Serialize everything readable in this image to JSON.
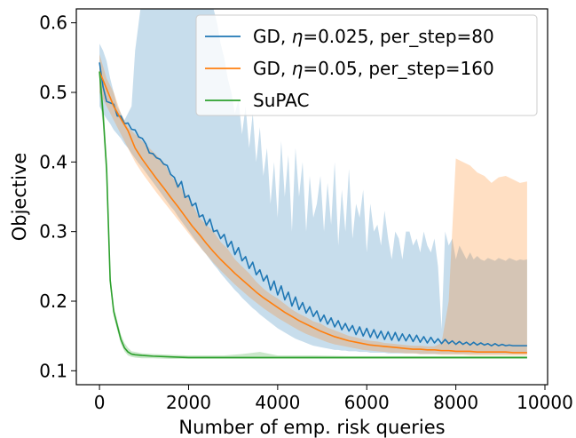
{
  "chart_data": {
    "type": "line",
    "xlabel": "Number of emp. risk queries",
    "ylabel": "Objective",
    "xlim": [
      -520,
      10060
    ],
    "ylim": [
      0.08,
      0.62
    ],
    "x_ticks": [
      0,
      2000,
      4000,
      6000,
      8000,
      10000
    ],
    "y_ticks": [
      0.1,
      0.2,
      0.3,
      0.4,
      0.5,
      0.6
    ],
    "x_tick_labels": [
      "0",
      "2000",
      "4000",
      "6000",
      "8000",
      "10000"
    ],
    "y_tick_labels": [
      "0.1",
      "0.2",
      "0.3",
      "0.4",
      "0.5",
      "0.6"
    ],
    "grid": false,
    "legend_position": "top-right",
    "series": [
      {
        "name": "GD, η=0.025, per_step=80",
        "legend_parts": [
          "GD, ",
          "η",
          "=0.025, per_step=80"
        ],
        "color": "#1f77b4",
        "band_color": "#1f77b4",
        "x": [
          0,
          80,
          160,
          240,
          320,
          400,
          480,
          560,
          640,
          720,
          800,
          880,
          960,
          1040,
          1120,
          1200,
          1280,
          1360,
          1440,
          1520,
          1600,
          1680,
          1760,
          1840,
          1920,
          2000,
          2080,
          2160,
          2240,
          2320,
          2400,
          2480,
          2560,
          2640,
          2720,
          2800,
          2880,
          2960,
          3040,
          3120,
          3200,
          3280,
          3360,
          3440,
          3520,
          3600,
          3680,
          3760,
          3840,
          3920,
          4000,
          4080,
          4160,
          4240,
          4320,
          4400,
          4480,
          4560,
          4640,
          4720,
          4800,
          4880,
          4960,
          5040,
          5120,
          5200,
          5280,
          5360,
          5440,
          5520,
          5600,
          5680,
          5760,
          5840,
          5920,
          6000,
          6080,
          6160,
          6240,
          6320,
          6400,
          6480,
          6560,
          6640,
          6720,
          6800,
          6880,
          6960,
          7040,
          7120,
          7200,
          7280,
          7360,
          7440,
          7520,
          7600,
          7680,
          7760,
          7840,
          7920,
          8000,
          8080,
          8160,
          8240,
          8320,
          8400,
          8480,
          8560,
          8640,
          8720,
          8800,
          8880,
          8960,
          9040,
          9120,
          9200,
          9280,
          9360,
          9440,
          9520,
          9600
        ],
        "y": [
          0.543,
          0.508,
          0.487,
          0.485,
          0.483,
          0.466,
          0.466,
          0.455,
          0.456,
          0.447,
          0.446,
          0.436,
          0.434,
          0.426,
          0.413,
          0.412,
          0.406,
          0.404,
          0.397,
          0.395,
          0.382,
          0.378,
          0.364,
          0.372,
          0.349,
          0.352,
          0.337,
          0.341,
          0.321,
          0.324,
          0.309,
          0.318,
          0.3,
          0.302,
          0.29,
          0.296,
          0.278,
          0.286,
          0.267,
          0.277,
          0.258,
          0.264,
          0.247,
          0.256,
          0.238,
          0.245,
          0.229,
          0.237,
          0.216,
          0.229,
          0.209,
          0.222,
          0.202,
          0.213,
          0.193,
          0.206,
          0.188,
          0.198,
          0.183,
          0.192,
          0.178,
          0.186,
          0.171,
          0.18,
          0.167,
          0.176,
          0.163,
          0.172,
          0.159,
          0.168,
          0.157,
          0.165,
          0.152,
          0.163,
          0.15,
          0.161,
          0.148,
          0.159,
          0.147,
          0.157,
          0.145,
          0.156,
          0.144,
          0.155,
          0.143,
          0.153,
          0.143,
          0.152,
          0.142,
          0.151,
          0.141,
          0.149,
          0.14,
          0.148,
          0.14,
          0.146,
          0.139,
          0.145,
          0.139,
          0.143,
          0.138,
          0.142,
          0.138,
          0.141,
          0.137,
          0.141,
          0.137,
          0.14,
          0.137,
          0.139,
          0.136,
          0.139,
          0.136,
          0.138,
          0.136,
          0.137,
          0.136,
          0.136,
          0.136,
          0.136,
          0.136
        ],
        "lower": [
          0.48,
          0.47,
          0.462,
          0.455,
          0.446,
          0.44,
          0.434,
          0.426,
          0.42,
          0.412,
          0.405,
          0.398,
          0.392,
          0.385,
          0.378,
          0.371,
          0.364,
          0.357,
          0.35,
          0.343,
          0.336,
          0.33,
          0.322,
          0.315,
          0.308,
          0.301,
          0.294,
          0.287,
          0.28,
          0.273,
          0.267,
          0.26,
          0.253,
          0.247,
          0.24,
          0.234,
          0.228,
          0.222,
          0.216,
          0.211,
          0.205,
          0.2,
          0.195,
          0.19,
          0.186,
          0.181,
          0.177,
          0.173,
          0.169,
          0.165,
          0.161,
          0.158,
          0.155,
          0.152,
          0.149,
          0.146,
          0.144,
          0.142,
          0.14,
          0.138,
          0.136,
          0.135,
          0.134,
          0.133,
          0.132,
          0.131,
          0.13,
          0.13,
          0.129,
          0.129,
          0.128,
          0.128,
          0.128,
          0.127,
          0.127,
          0.127,
          0.126,
          0.126,
          0.126,
          0.126,
          0.126,
          0.125,
          0.125,
          0.125,
          0.125,
          0.125,
          0.125,
          0.125,
          0.125,
          0.125,
          0.124,
          0.124,
          0.124,
          0.124,
          0.124,
          0.124,
          0.124,
          0.124,
          0.124,
          0.124,
          0.124,
          0.124,
          0.124,
          0.124,
          0.124,
          0.124,
          0.124,
          0.124,
          0.124,
          0.124,
          0.124,
          0.124,
          0.124,
          0.124,
          0.124,
          0.124,
          0.124,
          0.124,
          0.124,
          0.124,
          0.124
        ],
        "upper": [
          0.57,
          0.56,
          0.545,
          0.52,
          0.5,
          0.48,
          0.47,
          0.46,
          0.47,
          0.48,
          0.56,
          0.6,
          0.64,
          0.65,
          0.65,
          0.65,
          0.65,
          0.65,
          0.65,
          0.65,
          0.65,
          0.65,
          0.65,
          0.65,
          0.65,
          0.65,
          0.65,
          0.65,
          0.65,
          0.65,
          0.65,
          0.64,
          0.62,
          0.6,
          0.57,
          0.55,
          0.52,
          0.5,
          0.47,
          0.49,
          0.44,
          0.48,
          0.42,
          0.47,
          0.4,
          0.45,
          0.38,
          0.42,
          0.34,
          0.4,
          0.32,
          0.43,
          0.35,
          0.41,
          0.3,
          0.42,
          0.35,
          0.4,
          0.3,
          0.38,
          0.32,
          0.34,
          0.38,
          0.3,
          0.37,
          0.31,
          0.4,
          0.28,
          0.36,
          0.3,
          0.39,
          0.29,
          0.34,
          0.32,
          0.36,
          0.27,
          0.34,
          0.3,
          0.31,
          0.28,
          0.33,
          0.29,
          0.26,
          0.3,
          0.29,
          0.26,
          0.3,
          0.3,
          0.28,
          0.29,
          0.27,
          0.3,
          0.28,
          0.27,
          0.29,
          0.25,
          0.16,
          0.3,
          0.28,
          0.29,
          0.26,
          0.28,
          0.27,
          0.26,
          0.27,
          0.26,
          0.265,
          0.26,
          0.258,
          0.262,
          0.26,
          0.258,
          0.262,
          0.26,
          0.258,
          0.262,
          0.26,
          0.258,
          0.26,
          0.259,
          0.26
        ]
      },
      {
        "name": "GD, η=0.05, per_step=160",
        "legend_parts": [
          "GD, ",
          "η",
          "=0.05, per_step=160"
        ],
        "color": "#ff7f0e",
        "band_color": "#ff7f0e",
        "x": [
          0,
          160,
          320,
          480,
          640,
          800,
          960,
          1120,
          1280,
          1440,
          1600,
          1760,
          1920,
          2080,
          2240,
          2400,
          2560,
          2720,
          2880,
          3040,
          3200,
          3360,
          3520,
          3680,
          3840,
          4000,
          4160,
          4320,
          4480,
          4640,
          4800,
          4960,
          5120,
          5280,
          5440,
          5600,
          5760,
          5920,
          6080,
          6240,
          6400,
          6560,
          6720,
          6880,
          7040,
          7200,
          7360,
          7520,
          7680,
          7840,
          8000,
          8160,
          8320,
          8480,
          8640,
          8800,
          8960,
          9120,
          9280,
          9440,
          9600
        ],
        "y": [
          0.53,
          0.505,
          0.48,
          0.462,
          0.445,
          0.42,
          0.404,
          0.39,
          0.376,
          0.363,
          0.349,
          0.336,
          0.322,
          0.308,
          0.296,
          0.283,
          0.271,
          0.26,
          0.25,
          0.24,
          0.231,
          0.222,
          0.213,
          0.205,
          0.198,
          0.191,
          0.184,
          0.178,
          0.172,
          0.167,
          0.162,
          0.157,
          0.153,
          0.149,
          0.146,
          0.143,
          0.141,
          0.139,
          0.137,
          0.136,
          0.135,
          0.134,
          0.133,
          0.132,
          0.131,
          0.131,
          0.13,
          0.13,
          0.129,
          0.129,
          0.128,
          0.128,
          0.128,
          0.127,
          0.127,
          0.127,
          0.127,
          0.127,
          0.126,
          0.126,
          0.126
        ],
        "lower": [
          0.5,
          0.48,
          0.46,
          0.44,
          0.42,
          0.4,
          0.384,
          0.37,
          0.356,
          0.343,
          0.33,
          0.317,
          0.304,
          0.291,
          0.279,
          0.267,
          0.255,
          0.244,
          0.234,
          0.224,
          0.215,
          0.206,
          0.198,
          0.19,
          0.183,
          0.176,
          0.17,
          0.164,
          0.158,
          0.153,
          0.149,
          0.145,
          0.141,
          0.138,
          0.136,
          0.134,
          0.132,
          0.13,
          0.129,
          0.128,
          0.127,
          0.126,
          0.126,
          0.125,
          0.125,
          0.124,
          0.124,
          0.124,
          0.123,
          0.123,
          0.123,
          0.123,
          0.122,
          0.122,
          0.122,
          0.122,
          0.122,
          0.122,
          0.122,
          0.122,
          0.122
        ],
        "upper": [
          0.555,
          0.52,
          0.5,
          0.47,
          0.45,
          0.44,
          0.43,
          0.42,
          0.41,
          0.4,
          0.38,
          0.37,
          0.355,
          0.34,
          0.32,
          0.31,
          0.3,
          0.285,
          0.275,
          0.26,
          0.25,
          0.24,
          0.228,
          0.218,
          0.21,
          0.204,
          0.196,
          0.188,
          0.182,
          0.177,
          0.171,
          0.168,
          0.162,
          0.158,
          0.154,
          0.15,
          0.148,
          0.145,
          0.143,
          0.142,
          0.14,
          0.139,
          0.138,
          0.137,
          0.136,
          0.136,
          0.135,
          0.135,
          0.14,
          0.2,
          0.405,
          0.4,
          0.395,
          0.385,
          0.38,
          0.37,
          0.378,
          0.38,
          0.375,
          0.37,
          0.372
        ]
      },
      {
        "name": "SuPAC",
        "legend_parts": [
          "SuPAC"
        ],
        "color": "#2ca02c",
        "band_color": "#2ca02c",
        "x": [
          0,
          80,
          160,
          240,
          320,
          400,
          480,
          560,
          640,
          720,
          800,
          960,
          1200,
          1600,
          2000,
          2400,
          2800,
          3200,
          3600,
          4000,
          4800,
          5600,
          6400,
          7200,
          8000,
          8800,
          9600
        ],
        "y": [
          0.53,
          0.47,
          0.39,
          0.23,
          0.185,
          0.165,
          0.145,
          0.133,
          0.127,
          0.124,
          0.123,
          0.122,
          0.121,
          0.12,
          0.119,
          0.119,
          0.119,
          0.119,
          0.119,
          0.119,
          0.119,
          0.119,
          0.119,
          0.119,
          0.119,
          0.119,
          0.119
        ],
        "lower": [
          0.5,
          0.45,
          0.37,
          0.22,
          0.178,
          0.158,
          0.139,
          0.128,
          0.122,
          0.12,
          0.119,
          0.118,
          0.118,
          0.117,
          0.117,
          0.117,
          0.117,
          0.117,
          0.117,
          0.117,
          0.117,
          0.117,
          0.117,
          0.117,
          0.117,
          0.117,
          0.117
        ],
        "upper": [
          0.545,
          0.485,
          0.405,
          0.24,
          0.192,
          0.172,
          0.152,
          0.14,
          0.133,
          0.128,
          0.127,
          0.125,
          0.124,
          0.123,
          0.122,
          0.122,
          0.122,
          0.124,
          0.127,
          0.122,
          0.122,
          0.121,
          0.121,
          0.121,
          0.121,
          0.121,
          0.121
        ]
      }
    ]
  }
}
